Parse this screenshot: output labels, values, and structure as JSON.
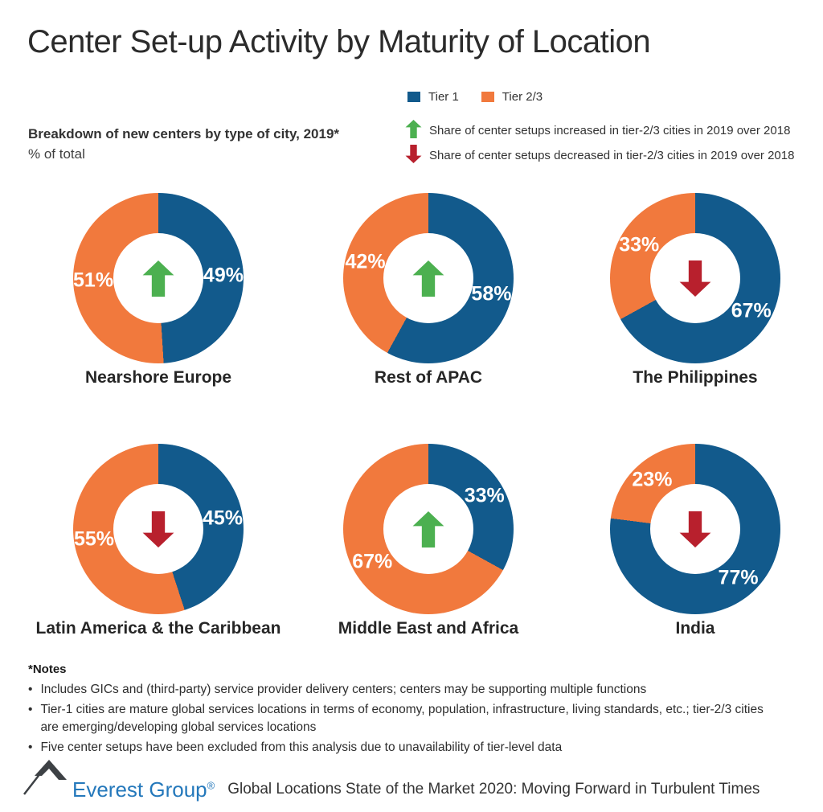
{
  "title": "Center Set-up Activity by Maturity of Location",
  "subtitle": {
    "heading": "Breakdown of new centers by type of city, 2019*",
    "unit": "% of total"
  },
  "legend": {
    "tier1_label": "Tier 1",
    "tier23_label": "Tier 2/3",
    "increase_note": "Share of center setups increased in tier-2/3 cities in 2019 over 2018",
    "decrease_note": "Share of center setups decreased in tier-2/3 cities in 2019 over 2018"
  },
  "colors": {
    "tier1_blue": "#125a8c",
    "tier23_orange": "#f1793d",
    "increase_green": "#4cb050",
    "decrease_red": "#b8202d"
  },
  "chart_data": [
    {
      "type": "pie",
      "subtype": "donut",
      "title": "Nearshore Europe",
      "categories": [
        "Tier 1",
        "Tier 2/3"
      ],
      "values": [
        49,
        51
      ],
      "trend": "increase"
    },
    {
      "type": "pie",
      "subtype": "donut",
      "title": "Rest of APAC",
      "categories": [
        "Tier 1",
        "Tier 2/3"
      ],
      "values": [
        58,
        42
      ],
      "trend": "increase"
    },
    {
      "type": "pie",
      "subtype": "donut",
      "title": "The Philippines",
      "categories": [
        "Tier 1",
        "Tier 2/3"
      ],
      "values": [
        67,
        33
      ],
      "trend": "decrease"
    },
    {
      "type": "pie",
      "subtype": "donut",
      "title": "Latin America & the Caribbean",
      "categories": [
        "Tier 1",
        "Tier 2/3"
      ],
      "values": [
        45,
        55
      ],
      "trend": "decrease"
    },
    {
      "type": "pie",
      "subtype": "donut",
      "title": "Middle East and Africa",
      "categories": [
        "Tier 1",
        "Tier 2/3"
      ],
      "values": [
        33,
        67
      ],
      "trend": "increase"
    },
    {
      "type": "pie",
      "subtype": "donut",
      "title": "India",
      "categories": [
        "Tier 1",
        "Tier 2/3"
      ],
      "values": [
        77,
        23
      ],
      "trend": "decrease"
    }
  ],
  "notes": {
    "heading": "*Notes",
    "items": [
      "Includes GICs and (third-party) service provider delivery centers; centers may be supporting multiple functions",
      "Tier-1 cities are mature global services locations in terms of economy, population, infrastructure, living standards, etc.; tier-2/3 cities are emerging/developing global services locations",
      "Five center setups have been excluded from this analysis due to unavailability of tier-level data"
    ]
  },
  "footer": {
    "logo_text": "Everest Group",
    "registered_mark": "®",
    "caption": "Global Locations State of the Market 2020: Moving Forward in Turbulent Times"
  }
}
